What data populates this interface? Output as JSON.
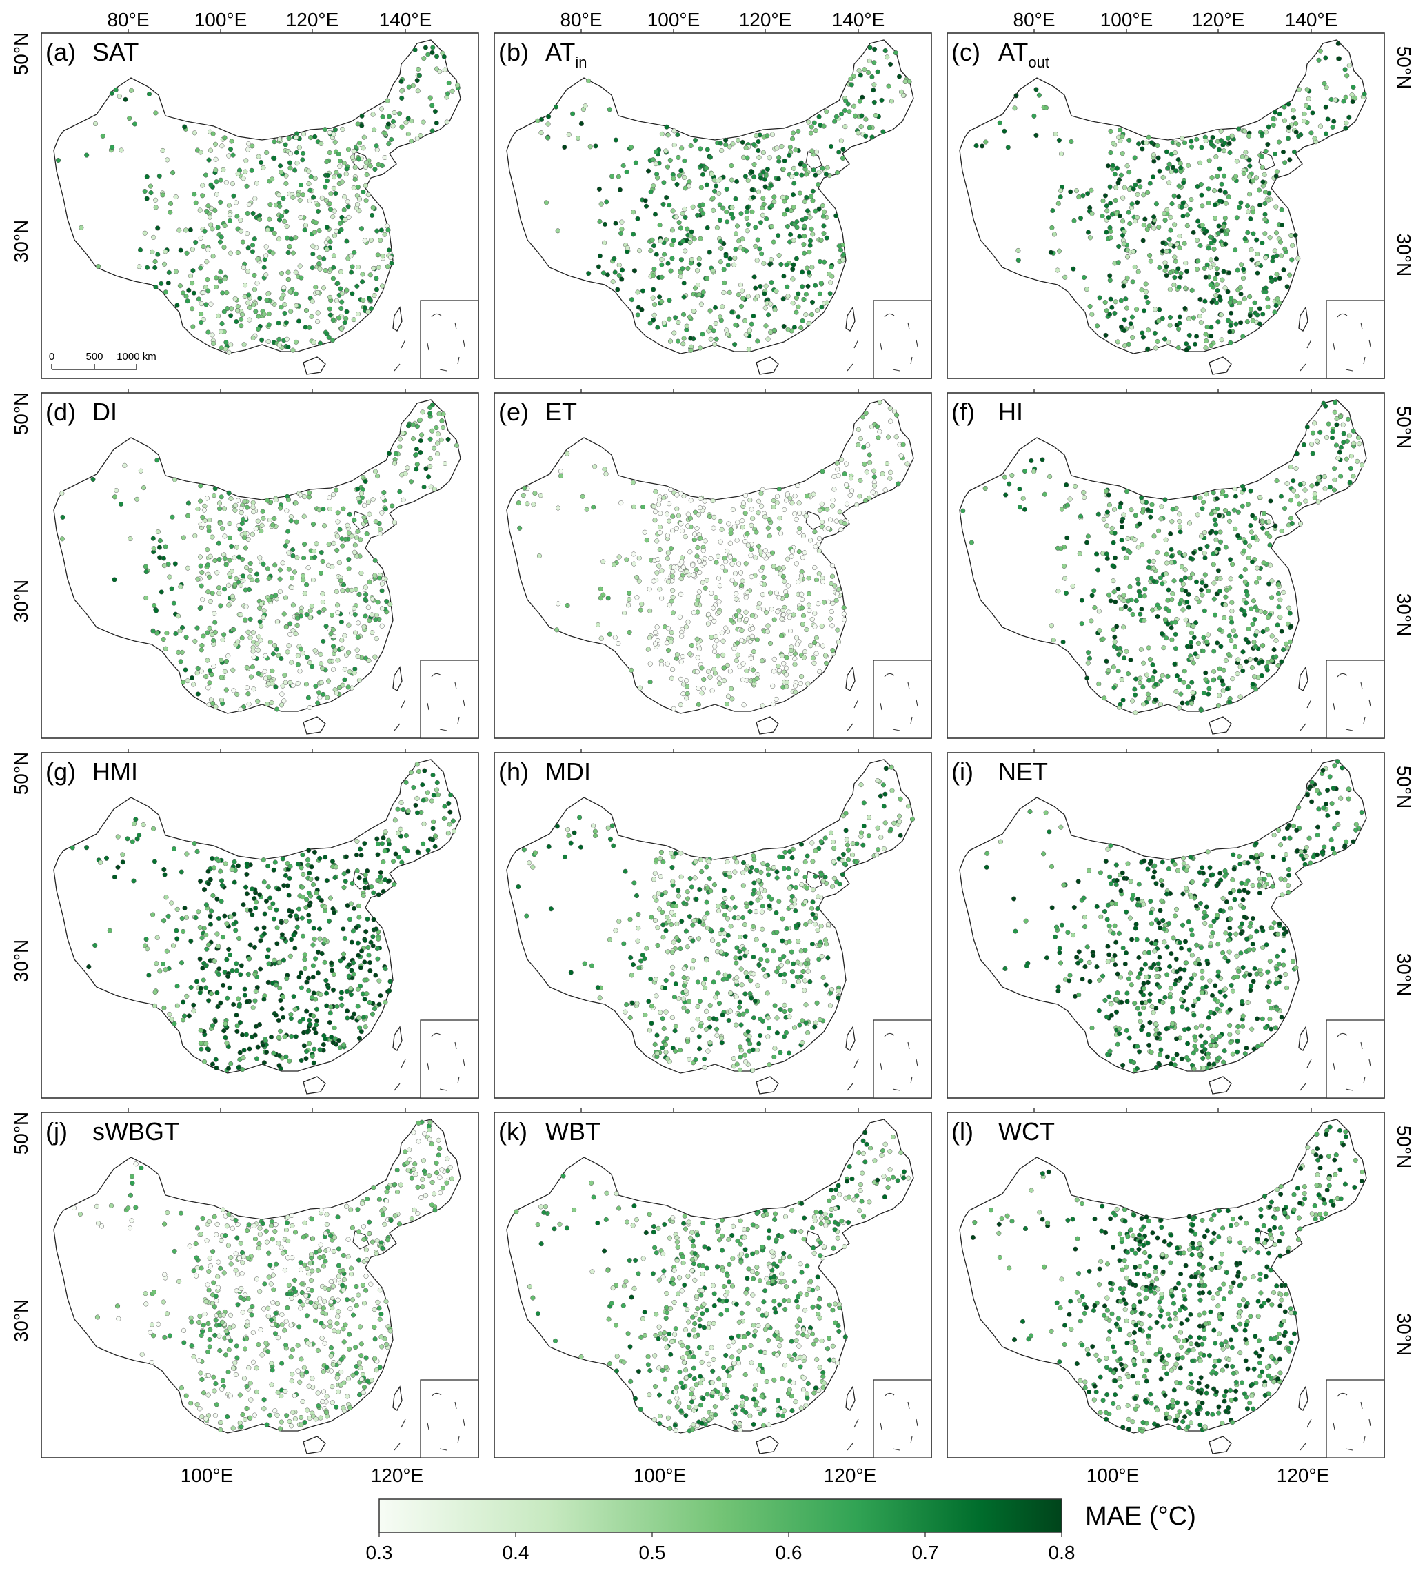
{
  "axes": {
    "top_lon_labels": [
      "80°E",
      "100°E",
      "120°E",
      "140°E"
    ],
    "bottom_lon_labels": [
      "100°E",
      "120°E"
    ],
    "lat_labels": [
      "50°N",
      "30°N"
    ]
  },
  "panels": [
    {
      "letter": "(a)",
      "name": "SAT",
      "sub": "",
      "density": 0.45,
      "west": 0.55
    },
    {
      "letter": "(b)",
      "name": "AT",
      "sub": "in",
      "density": 0.55,
      "west": 0.6
    },
    {
      "letter": "(c)",
      "name": "AT",
      "sub": "out",
      "density": 0.62,
      "west": 0.62
    },
    {
      "letter": "(d)",
      "name": "DI",
      "sub": "",
      "density": 0.38,
      "west": 0.55
    },
    {
      "letter": "(e)",
      "name": "ET",
      "sub": "",
      "density": 0.1,
      "west": 0.25
    },
    {
      "letter": "(f)",
      "name": "HI",
      "sub": "",
      "density": 0.62,
      "west": 0.55
    },
    {
      "letter": "(g)",
      "name": "HMI",
      "sub": "",
      "density": 0.8,
      "west": 0.62
    },
    {
      "letter": "(h)",
      "name": "MDI",
      "sub": "",
      "density": 0.5,
      "west": 0.55
    },
    {
      "letter": "(i)",
      "name": "NET",
      "sub": "",
      "density": 0.7,
      "west": 0.72
    },
    {
      "letter": "(j)",
      "name": "sWBGT",
      "sub": "",
      "density": 0.33,
      "west": 0.3
    },
    {
      "letter": "(k)",
      "name": "WBT",
      "sub": "",
      "density": 0.47,
      "west": 0.55
    },
    {
      "letter": "(l)",
      "name": "WCT",
      "sub": "",
      "density": 0.7,
      "west": 0.72
    }
  ],
  "scalebar": {
    "ticks": [
      "0",
      "500",
      "1000 km"
    ]
  },
  "colorbar": {
    "label": "MAE (°C)",
    "min": 0.3,
    "max": 0.8,
    "ticks": [
      "0.3",
      "0.4",
      "0.5",
      "0.6",
      "0.7",
      "0.8"
    ],
    "colors": [
      "#f7fcf5",
      "#c7e9c0",
      "#74c476",
      "#31a354",
      "#006d2c",
      "#00441b"
    ]
  }
}
